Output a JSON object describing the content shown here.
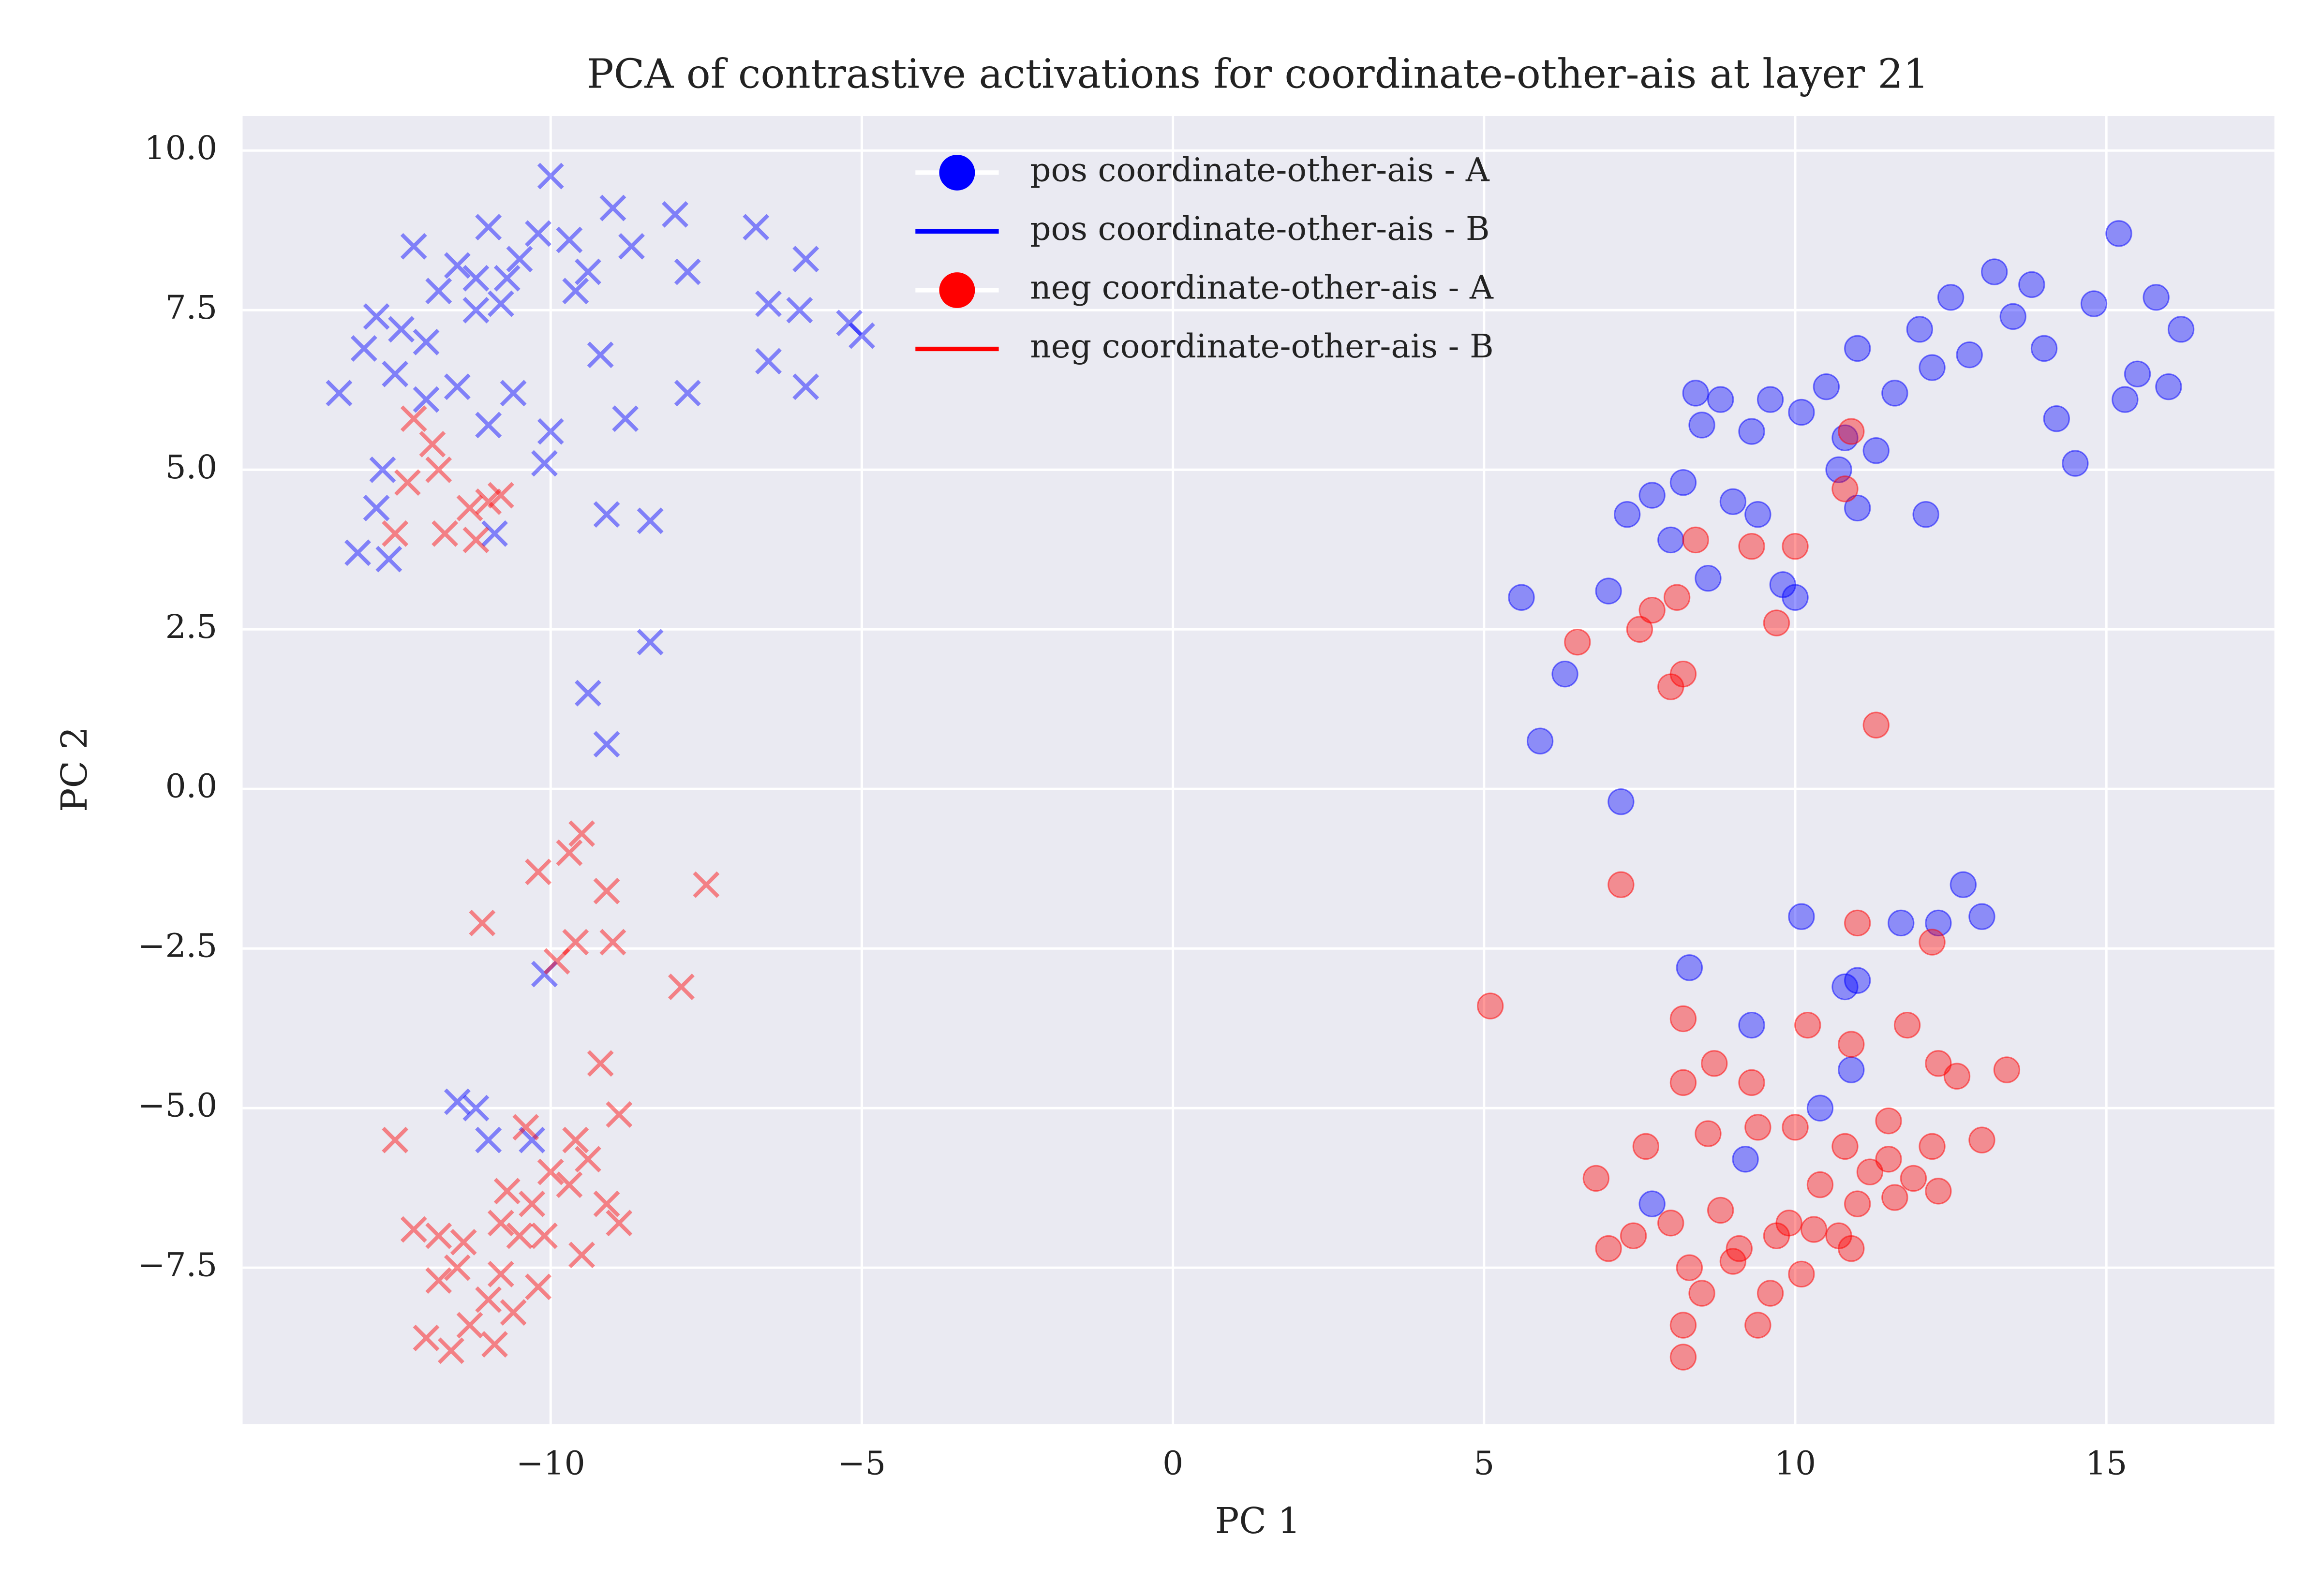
{
  "chart_data": {
    "type": "scatter",
    "title": "PCA of contrastive activations for coordinate-other-ais at layer 21",
    "x_label": "PC 1",
    "y_label": "PC 2",
    "xlim": [
      -14.95,
      17.7
    ],
    "ylim": [
      -9.95,
      10.54
    ],
    "xticks": [
      {
        "value": -10,
        "label": "−10"
      },
      {
        "value": -5,
        "label": "−5"
      },
      0,
      5,
      10,
      15
    ],
    "yticks": [
      {
        "value": -7.5,
        "label": "−7.5"
      },
      {
        "value": -5,
        "label": "−5.0"
      },
      {
        "value": -2.5,
        "label": "−2.5"
      },
      {
        "value": 0,
        "label": "0.0"
      },
      {
        "value": 2.5,
        "label": "2.5"
      },
      {
        "value": 5,
        "label": "5.0"
      },
      {
        "value": 7.5,
        "label": "7.5"
      },
      {
        "value": 10,
        "label": "10.0"
      }
    ],
    "grid": true,
    "legend_loc": "upper center",
    "series": [
      {
        "name": "pos coordinate-other-ais - A",
        "color": "#0000ff",
        "marker": "o",
        "x": [
          5.6,
          5.9,
          6.3,
          7.2,
          7.0,
          7.3,
          7.7,
          8.0,
          8.2,
          8.4,
          8.5,
          8.8,
          9.0,
          9.3,
          9.6,
          9.8,
          10.0,
          10.1,
          10.5,
          10.8,
          11.0,
          11.3,
          11.6,
          12.0,
          12.2,
          12.5,
          12.8,
          13.2,
          13.5,
          13.8,
          14.0,
          14.2,
          14.5,
          14.8,
          15.2,
          15.5,
          15.8,
          16.2,
          16.0,
          15.3,
          12.1,
          11.0,
          10.7,
          9.4,
          8.6,
          8.3,
          9.3,
          10.1,
          11.0,
          11.7,
          12.3,
          12.7,
          13.0,
          10.4,
          7.7,
          10.9,
          10.8,
          9.2
        ],
        "y": [
          3.0,
          0.75,
          1.8,
          -0.2,
          3.1,
          4.3,
          4.6,
          3.9,
          4.8,
          6.2,
          5.7,
          6.1,
          4.5,
          5.6,
          6.1,
          3.2,
          3.0,
          5.9,
          6.3,
          5.5,
          6.9,
          5.3,
          6.2,
          7.2,
          6.6,
          7.7,
          6.8,
          8.1,
          7.4,
          7.9,
          6.9,
          5.8,
          5.1,
          7.6,
          8.7,
          6.5,
          7.7,
          7.2,
          6.3,
          6.1,
          4.3,
          4.4,
          5.0,
          4.3,
          3.3,
          -2.8,
          -3.7,
          -2.0,
          -3.0,
          -2.1,
          -2.1,
          -1.5,
          -2.0,
          -5.0,
          -6.5,
          -4.4,
          -3.1,
          -5.8
        ]
      },
      {
        "name": "pos coordinate-other-ais - B",
        "color": "#0000ff",
        "marker": "x",
        "x": [
          -13.4,
          -13.0,
          -12.8,
          -12.5,
          -12.2,
          -12.0,
          -11.8,
          -11.5,
          -11.2,
          -11.0,
          -10.8,
          -10.5,
          -10.2,
          -10.0,
          -9.7,
          -9.4,
          -9.0,
          -8.7,
          -8.0,
          -7.8,
          -6.7,
          -6.5,
          -6.0,
          -5.9,
          -5.2,
          -5.0,
          -6.5,
          -5.9,
          -7.8,
          -8.8,
          -9.2,
          -10.0,
          -10.1,
          -10.6,
          -11.0,
          -11.5,
          -12.0,
          -12.7,
          -12.8,
          -13.1,
          -12.6,
          -10.9,
          -9.1,
          -8.4,
          -11.2,
          -10.7,
          -9.6,
          -12.4,
          -9.4,
          -9.1,
          -8.4,
          -10.1,
          -11.2,
          -11.5,
          -11.0,
          -10.3
        ],
        "y": [
          6.2,
          6.9,
          7.4,
          6.5,
          8.5,
          7.0,
          7.8,
          8.2,
          8.0,
          8.8,
          7.6,
          8.3,
          8.7,
          9.6,
          8.6,
          8.1,
          9.1,
          8.5,
          9.0,
          8.1,
          8.8,
          7.6,
          7.5,
          8.3,
          7.3,
          7.1,
          6.7,
          6.3,
          6.2,
          5.8,
          6.8,
          5.6,
          5.1,
          6.2,
          5.7,
          6.3,
          6.1,
          5.0,
          4.4,
          3.7,
          3.6,
          4.0,
          4.3,
          4.2,
          7.5,
          8.0,
          7.8,
          7.2,
          1.5,
          0.7,
          2.3,
          -2.9,
          -5.0,
          -4.9,
          -5.5,
          -5.5
        ]
      },
      {
        "name": "neg coordinate-other-ais - A",
        "color": "#ff0000",
        "marker": "o",
        "x": [
          7.5,
          7.7,
          8.0,
          8.2,
          8.1,
          8.4,
          9.7,
          10.0,
          9.3,
          10.8,
          10.9,
          11.3,
          6.5,
          7.2,
          5.1,
          11.0,
          12.2,
          8.2,
          8.2,
          8.7,
          9.3,
          10.2,
          10.9,
          11.8,
          12.3,
          12.6,
          13.4,
          13.0,
          12.2,
          11.5,
          10.8,
          10.0,
          9.4,
          8.6,
          7.6,
          6.8,
          7.0,
          7.4,
          8.0,
          8.3,
          8.5,
          8.8,
          9.1,
          9.4,
          9.7,
          9.9,
          10.1,
          10.4,
          10.7,
          11.0,
          11.2,
          11.6,
          11.9,
          12.3,
          9.0,
          8.2,
          8.2,
          9.6,
          10.3,
          10.9,
          11.5
        ],
        "y": [
          2.5,
          2.8,
          1.6,
          1.8,
          3.0,
          3.9,
          2.6,
          3.8,
          3.8,
          4.7,
          5.6,
          1.0,
          2.3,
          -1.5,
          -3.4,
          -2.1,
          -2.4,
          -3.6,
          -4.6,
          -4.3,
          -4.6,
          -3.7,
          -4.0,
          -3.7,
          -4.3,
          -4.5,
          -4.4,
          -5.5,
          -5.6,
          -5.2,
          -5.6,
          -5.3,
          -5.3,
          -5.4,
          -5.6,
          -6.1,
          -7.2,
          -7.0,
          -6.8,
          -7.5,
          -7.9,
          -6.6,
          -7.2,
          -8.4,
          -7.0,
          -6.8,
          -7.6,
          -6.2,
          -7.0,
          -6.5,
          -6.0,
          -6.4,
          -6.1,
          -6.3,
          -7.4,
          -8.4,
          -8.9,
          -7.9,
          -6.9,
          -7.2,
          -5.8
        ]
      },
      {
        "name": "neg coordinate-other-ais - B",
        "color": "#ff0000",
        "marker": "x",
        "x": [
          -12.2,
          -11.9,
          -12.3,
          -12.5,
          -11.7,
          -11.3,
          -11.0,
          -11.2,
          -10.8,
          -11.8,
          -9.5,
          -9.7,
          -10.2,
          -9.1,
          -7.5,
          -11.1,
          -9.9,
          -9.6,
          -9.0,
          -7.9,
          -9.2,
          -8.9,
          -12.5,
          -12.2,
          -11.8,
          -11.5,
          -12.0,
          -11.6,
          -11.3,
          -11.0,
          -10.8,
          -10.5,
          -10.7,
          -10.3,
          -10.0,
          -9.7,
          -9.4,
          -9.1,
          -8.9,
          -9.5,
          -10.2,
          -10.6,
          -10.9,
          -11.4,
          -11.8,
          -10.4,
          -9.6,
          -10.1,
          -10.8
        ],
        "y": [
          5.8,
          5.4,
          4.8,
          4.0,
          4.0,
          4.4,
          4.5,
          3.9,
          4.6,
          5.0,
          -0.7,
          -1.0,
          -1.3,
          -1.6,
          -1.5,
          -2.1,
          -2.7,
          -2.4,
          -2.4,
          -3.1,
          -4.3,
          -5.1,
          -5.5,
          -6.9,
          -7.0,
          -7.5,
          -8.6,
          -8.8,
          -8.4,
          -8.0,
          -7.6,
          -7.0,
          -6.3,
          -6.5,
          -6.0,
          -6.2,
          -5.8,
          -6.5,
          -6.8,
          -7.3,
          -7.8,
          -8.2,
          -8.7,
          -7.1,
          -7.7,
          -5.3,
          -5.5,
          -7.0,
          -6.8
        ]
      }
    ]
  }
}
